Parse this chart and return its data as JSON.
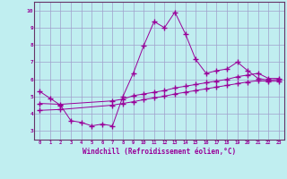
{
  "background_color": "#c0eef0",
  "line_color": "#990099",
  "grid_color": "#a0a0cc",
  "xlabel": "Windchill (Refroidissement éolien,°C)",
  "xlabel_color": "#990099",
  "ylim": [
    2.5,
    10.5
  ],
  "xlim": [
    -0.5,
    23.5
  ],
  "yticks": [
    3,
    4,
    5,
    6,
    7,
    8,
    9,
    10
  ],
  "xticks": [
    0,
    1,
    2,
    3,
    4,
    5,
    6,
    7,
    8,
    9,
    10,
    11,
    12,
    13,
    14,
    15,
    16,
    17,
    18,
    19,
    20,
    21,
    22,
    23
  ],
  "line1_x": [
    0,
    1,
    2,
    3,
    4,
    5,
    6,
    7,
    8,
    9,
    10,
    11,
    12,
    13,
    14,
    15,
    16,
    17,
    18,
    19,
    20,
    21,
    22,
    23
  ],
  "line1_y": [
    5.3,
    4.9,
    4.5,
    3.6,
    3.5,
    3.3,
    3.4,
    3.3,
    5.0,
    6.35,
    7.95,
    9.35,
    9.0,
    9.9,
    8.65,
    7.15,
    6.35,
    6.5,
    6.6,
    7.0,
    6.5,
    6.05,
    5.95,
    6.0
  ],
  "line2_x": [
    0,
    2,
    7,
    8,
    9,
    10,
    11,
    12,
    13,
    14,
    15,
    16,
    17,
    18,
    19,
    20,
    21,
    22,
    23
  ],
  "line2_y": [
    4.6,
    4.55,
    4.75,
    4.85,
    5.05,
    5.15,
    5.25,
    5.35,
    5.5,
    5.6,
    5.7,
    5.8,
    5.9,
    6.0,
    6.15,
    6.25,
    6.35,
    6.05,
    6.05
  ],
  "line3_x": [
    0,
    2,
    7,
    8,
    9,
    10,
    11,
    12,
    13,
    14,
    15,
    16,
    17,
    18,
    19,
    20,
    21,
    22,
    23
  ],
  "line3_y": [
    4.2,
    4.25,
    4.5,
    4.6,
    4.7,
    4.82,
    4.92,
    5.02,
    5.15,
    5.25,
    5.35,
    5.45,
    5.55,
    5.65,
    5.75,
    5.85,
    5.92,
    5.88,
    5.9
  ],
  "border_color": "#663366",
  "axis_label_color": "#663366"
}
